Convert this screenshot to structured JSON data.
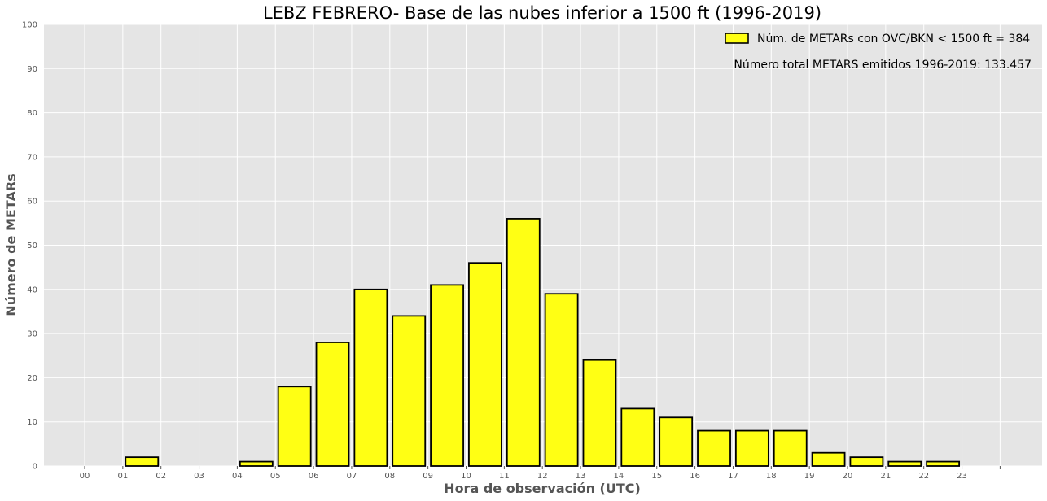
{
  "chart_data": {
    "type": "bar",
    "title": "LEBZ FEBRERO- Base de las nubes inferior a 1500 ft (1996-2019)",
    "xlabel": "Hora de observación (UTC)",
    "ylabel": "Número de METARs",
    "categories": [
      "00",
      "01",
      "02",
      "03",
      "04",
      "05",
      "06",
      "07",
      "08",
      "09",
      "10",
      "11",
      "12",
      "13",
      "14",
      "15",
      "16",
      "17",
      "18",
      "19",
      "20",
      "21",
      "22",
      "23"
    ],
    "values": [
      0,
      2,
      0,
      0,
      1,
      18,
      28,
      40,
      34,
      41,
      46,
      56,
      39,
      24,
      13,
      11,
      8,
      8,
      8,
      3,
      2,
      1,
      1,
      0
    ],
    "series_name": "Núm. de METARs con OVC/BKN < 1500 ft = 384",
    "annotation": "Número total METARS emitidos 1996-2019: 133.457",
    "ylim": [
      0,
      100
    ],
    "yticks": [
      0,
      10,
      20,
      30,
      40,
      50,
      60,
      70,
      80,
      90,
      100
    ],
    "grid": true,
    "legend_position": "top-right",
    "colors": {
      "bar_fill": "#ffff14",
      "bar_edge": "#000000",
      "plot_bg": "#e5e5e5",
      "grid": "#ffffff"
    }
  }
}
